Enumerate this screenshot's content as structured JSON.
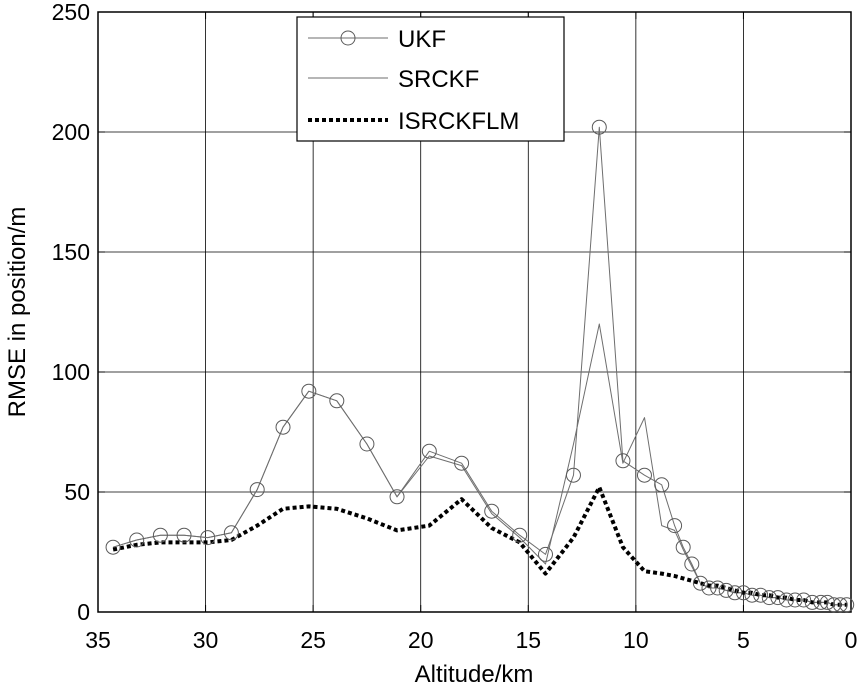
{
  "chart_data": {
    "type": "line",
    "title": "",
    "xlabel": "Altitude/km",
    "ylabel": "RMSE in position/m",
    "xlim": [
      35,
      0
    ],
    "ylim": [
      0,
      250
    ],
    "x_reversed": true,
    "xticks": [
      35,
      30,
      25,
      20,
      15,
      10,
      5,
      0
    ],
    "yticks": [
      0,
      50,
      100,
      150,
      200,
      250
    ],
    "grid": true,
    "legend_position": "top-center",
    "series": [
      {
        "name": "UKF",
        "style": "thin solid line with open circle markers",
        "color": "#6e6e6e",
        "x": [
          34.3,
          33.2,
          32.1,
          31.0,
          29.9,
          28.8,
          27.6,
          26.4,
          25.2,
          23.9,
          22.5,
          21.1,
          19.6,
          18.1,
          16.7,
          15.4,
          14.2,
          12.9,
          11.7,
          10.6,
          9.6,
          8.8,
          8.2,
          7.8,
          7.4,
          7.0,
          6.6,
          6.2,
          5.8,
          5.4,
          5.0,
          4.6,
          4.2,
          3.8,
          3.4,
          3.0,
          2.6,
          2.2,
          1.8,
          1.4,
          1.1,
          0.8,
          0.5,
          0.2
        ],
        "y": [
          27,
          30,
          32,
          32,
          31,
          33,
          51,
          77,
          92,
          88,
          70,
          48,
          67,
          62,
          42,
          32,
          24,
          57,
          202,
          63,
          57,
          53,
          36,
          27,
          20,
          12,
          10,
          10,
          9,
          8,
          8,
          7,
          7,
          6,
          6,
          5,
          5,
          5,
          4,
          4,
          4,
          3,
          3,
          3
        ]
      },
      {
        "name": "SRCKF",
        "style": "thin solid line",
        "color": "#6e6e6e",
        "x": [
          34.3,
          33.2,
          32.1,
          31.0,
          29.9,
          28.8,
          27.6,
          26.4,
          25.2,
          23.9,
          22.5,
          21.1,
          19.6,
          18.1,
          16.7,
          15.4,
          14.2,
          12.9,
          11.7,
          10.6,
          9.6,
          8.8,
          8.2,
          7.8,
          7.4,
          7.0,
          6.6,
          6.2,
          5.8,
          5.4,
          5.0,
          4.6,
          4.2,
          3.8,
          3.4,
          3.0,
          2.6,
          2.2,
          1.8,
          1.4,
          1.1,
          0.8,
          0.5,
          0.2
        ],
        "y": [
          27,
          30,
          32,
          32,
          31,
          33,
          51,
          77,
          92,
          88,
          70,
          48,
          65,
          61,
          41,
          31,
          20,
          70,
          120,
          62,
          81,
          36,
          34,
          26,
          19,
          12,
          10,
          10,
          9,
          8,
          8,
          7,
          7,
          6,
          6,
          5,
          5,
          5,
          4,
          4,
          4,
          3,
          3,
          3
        ]
      },
      {
        "name": "ISRCKFLM",
        "style": "thick dotted line",
        "color": "#000000",
        "x": [
          34.3,
          33.2,
          32.1,
          31.0,
          29.9,
          28.8,
          27.6,
          26.4,
          25.2,
          23.9,
          22.5,
          21.1,
          19.6,
          18.1,
          16.7,
          15.4,
          14.2,
          12.9,
          11.7,
          10.6,
          9.6,
          8.8,
          8.2,
          7.8,
          7.4,
          7.0,
          6.6,
          6.2,
          5.8,
          5.4,
          5.0,
          4.6,
          4.2,
          3.8,
          3.4,
          3.0,
          2.6,
          2.2,
          1.8,
          1.4,
          1.1,
          0.8,
          0.5,
          0.2
        ],
        "y": [
          26,
          28,
          29,
          29,
          29,
          30,
          36,
          43,
          44,
          43,
          39,
          34,
          36,
          47,
          35,
          29,
          16,
          31,
          52,
          27,
          17,
          16,
          15,
          14,
          13,
          12,
          11,
          11,
          10,
          9,
          8,
          8,
          7,
          7,
          6,
          6,
          5,
          5,
          4,
          4,
          4,
          3,
          3,
          3
        ]
      }
    ]
  }
}
